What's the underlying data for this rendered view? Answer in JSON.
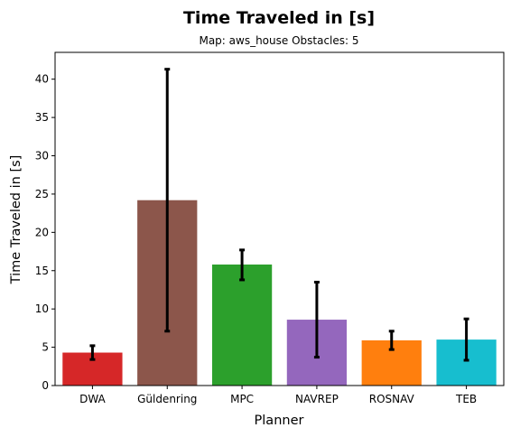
{
  "chart_data": {
    "type": "bar",
    "title": "Time Traveled in [s]",
    "subtitle": "Map: aws_house Obstacles: 5",
    "xlabel": "Planner",
    "ylabel": "Time Traveled in [s]",
    "ylim": [
      0,
      43.5
    ],
    "yticks": [
      0,
      5,
      10,
      15,
      20,
      25,
      30,
      35,
      40
    ],
    "grid": false,
    "categories": [
      "DWA",
      "Güldenring",
      "MPC",
      "NAVREP",
      "ROSNAV",
      "TEB"
    ],
    "values": [
      4.3,
      24.2,
      15.8,
      8.6,
      5.9,
      6.0
    ],
    "error_low": [
      3.4,
      7.1,
      13.8,
      3.7,
      4.7,
      3.3
    ],
    "error_high": [
      5.2,
      41.3,
      17.7,
      13.5,
      7.1,
      8.7
    ],
    "colors": [
      "#d62728",
      "#8c564b",
      "#2ca02c",
      "#9467bd",
      "#ff7f0e",
      "#17becf"
    ]
  }
}
